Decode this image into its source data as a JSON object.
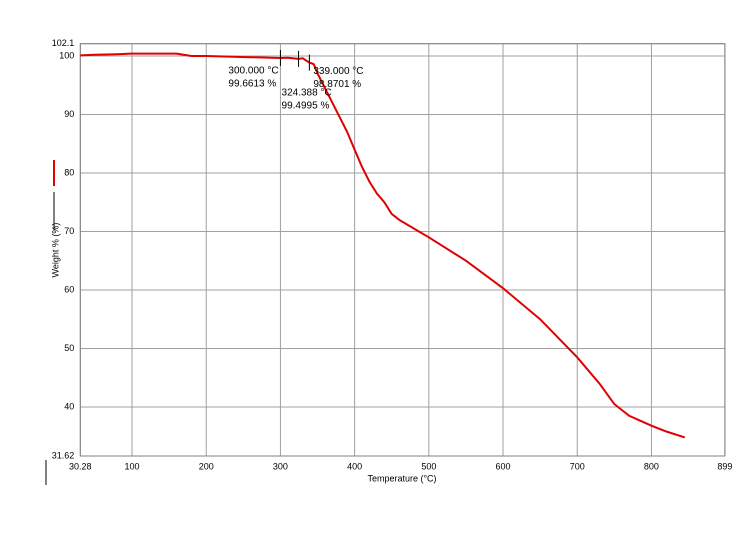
{
  "chart_data": {
    "type": "line",
    "xlabel": "Temperature (°C)",
    "ylabel": "Weight % (%)",
    "x": [
      30.28,
      50,
      80,
      100,
      160,
      180,
      200,
      300,
      310,
      324.388,
      330,
      339,
      345,
      350,
      360,
      370,
      380,
      390,
      400,
      410,
      420,
      430,
      440,
      450,
      460,
      480,
      500,
      550,
      600,
      650,
      700,
      730,
      750,
      770,
      800,
      820,
      845
    ],
    "series": [
      {
        "color": "#e00000",
        "values": [
          100.1,
          100.2,
          100.3,
          100.4,
          100.4,
          100.0,
          100.0,
          99.6613,
          99.7,
          99.4995,
          99.6,
          98.8701,
          98.6,
          97,
          94.5,
          92,
          89.5,
          87,
          84,
          81,
          78.5,
          76.5,
          75,
          73,
          72,
          70.5,
          69,
          65,
          60.3,
          55,
          48.5,
          44,
          40.5,
          38.5,
          36.8,
          35.8,
          34.8
        ]
      }
    ],
    "xlim": [
      30.28,
      899
    ],
    "xticks": [
      30.28,
      100,
      200,
      300,
      400,
      500,
      600,
      700,
      800,
      899
    ],
    "ylim": [
      31.62,
      102.1
    ],
    "yticks": [
      31.62,
      40,
      50,
      60,
      70,
      80,
      90,
      100,
      102.1
    ],
    "grid": true,
    "annotations": [
      {
        "x": 300,
        "y": 99.6613,
        "text": [
          "300.000 °C",
          "99.6613 %"
        ]
      },
      {
        "x": 324.388,
        "y": 99.4995,
        "text": [
          "324.388 °C",
          "99.4995 %"
        ]
      },
      {
        "x": 339,
        "y": 98.8701,
        "text": [
          "339.000 °C",
          "98.8701 %"
        ]
      }
    ]
  }
}
